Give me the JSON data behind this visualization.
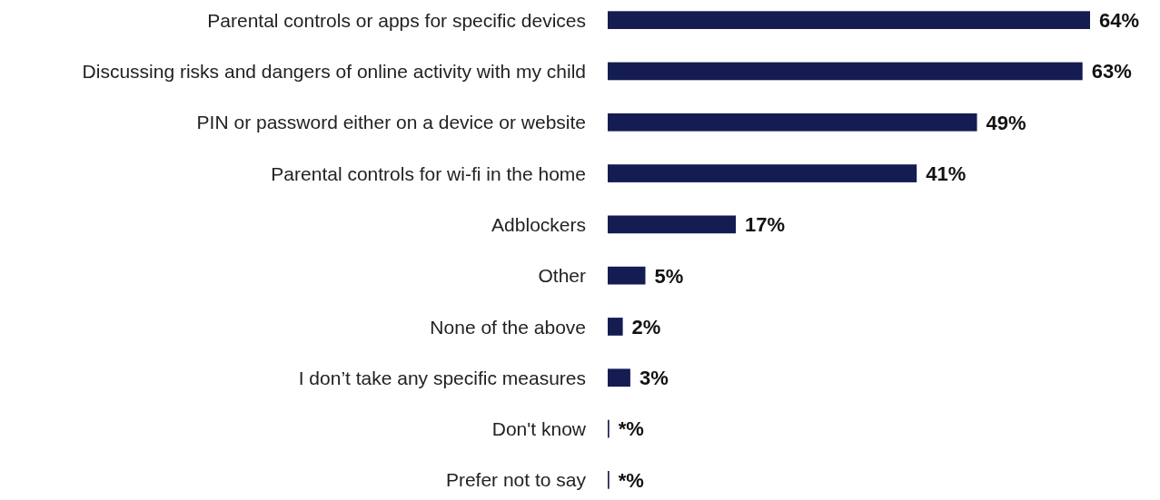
{
  "chart_data": {
    "type": "bar",
    "orientation": "horizontal",
    "categories": [
      "Parental controls or apps for specific devices",
      "Discussing risks and dangers of online activity with my child",
      "PIN or password either on a device or website",
      "Parental controls for wi-fi in the home",
      "Adblockers",
      "Other",
      "None of the above",
      "I don’t take any specific measures",
      "Don't know",
      "Prefer not to say"
    ],
    "values": [
      64,
      63,
      49,
      41,
      17,
      5,
      2,
      3,
      0.2,
      0.2
    ],
    "value_labels": [
      "64%",
      "63%",
      "49%",
      "41%",
      "17%",
      "5%",
      "2%",
      "3%",
      "*%",
      "*%"
    ],
    "color": "#141c52"
  }
}
